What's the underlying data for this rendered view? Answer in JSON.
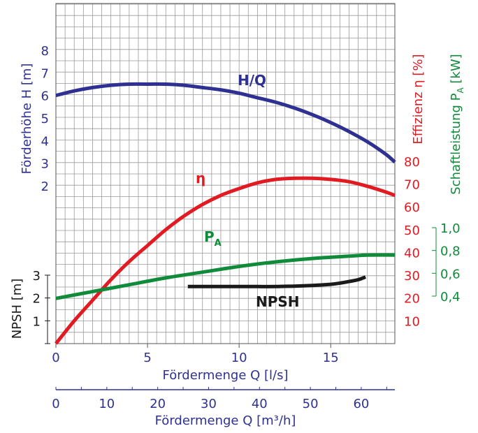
{
  "chart_data": {
    "type": "line",
    "title": "",
    "xlabel": "Fördermenge Q [l/s]",
    "xlabel_secondary": "Fördermenge Q [m³/h]",
    "xlim": [
      0,
      18.5
    ],
    "xticks": [
      "0",
      "5",
      "10",
      "15"
    ],
    "xticks_secondary": [
      "0",
      "10",
      "20",
      "30",
      "40",
      "50",
      "60"
    ],
    "axes": {
      "head": {
        "label": "Förderhöhe H [m]",
        "ticks": [
          "2",
          "3",
          "4",
          "5",
          "6",
          "7",
          "8"
        ],
        "color": "#2e3192"
      },
      "npsh": {
        "label": "NPSH [m]",
        "ticks": [
          "1",
          "2",
          "3"
        ],
        "color": "#1a1a1a"
      },
      "efficiency": {
        "label": "Effizienz η [%]",
        "ticks": [
          "10",
          "20",
          "30",
          "40",
          "50",
          "60",
          "70",
          "80"
        ],
        "color": "#e21b23"
      },
      "power": {
        "label_main": "Schaftleistung P",
        "label_sub": "A",
        "label_unit": " [kW]",
        "ticks": [
          "0,4",
          "0,6",
          "0,8",
          "1,0"
        ],
        "color": "#108b3a"
      }
    },
    "series": [
      {
        "name": "H/Q",
        "axis": "head",
        "color": "#2e3192",
        "x": [
          0,
          1,
          2,
          3,
          4,
          5,
          6,
          7,
          8,
          9,
          10,
          11,
          12,
          13,
          14,
          15,
          16,
          17,
          18,
          18.5
        ],
        "y": [
          6.0,
          6.2,
          6.35,
          6.45,
          6.5,
          6.5,
          6.5,
          6.45,
          6.35,
          6.25,
          6.1,
          5.9,
          5.7,
          5.45,
          5.15,
          4.8,
          4.4,
          3.95,
          3.4,
          3.05
        ]
      },
      {
        "name": "η",
        "axis": "efficiency",
        "color": "#e21b23",
        "x": [
          0,
          1,
          2,
          3,
          4,
          5,
          6,
          7,
          8,
          9,
          10,
          11,
          12,
          13,
          14,
          15,
          16,
          17,
          18,
          18.5
        ],
        "y": [
          0,
          10,
          19,
          28,
          36,
          43,
          50,
          56,
          61,
          65,
          68,
          70.5,
          72,
          72.5,
          72.5,
          72,
          71,
          69,
          66.5,
          65
        ]
      },
      {
        "name": "PA",
        "name_main": "P",
        "name_sub": "A",
        "axis": "power",
        "color": "#108b3a",
        "x": [
          0,
          2,
          4,
          6,
          8,
          10,
          12,
          14,
          16,
          17,
          18.5
        ],
        "y": [
          0.38,
          0.44,
          0.5,
          0.56,
          0.61,
          0.66,
          0.7,
          0.73,
          0.75,
          0.76,
          0.76
        ]
      },
      {
        "name": "NPSH",
        "axis": "npsh",
        "color": "#1a1a1a",
        "x": [
          7.2,
          8,
          9,
          10,
          11,
          12,
          13,
          14,
          15,
          15.5,
          16,
          16.5,
          16.9
        ],
        "y": [
          2.5,
          2.5,
          2.5,
          2.5,
          2.5,
          2.5,
          2.52,
          2.55,
          2.6,
          2.65,
          2.72,
          2.8,
          2.92
        ]
      }
    ],
    "grid": true
  }
}
